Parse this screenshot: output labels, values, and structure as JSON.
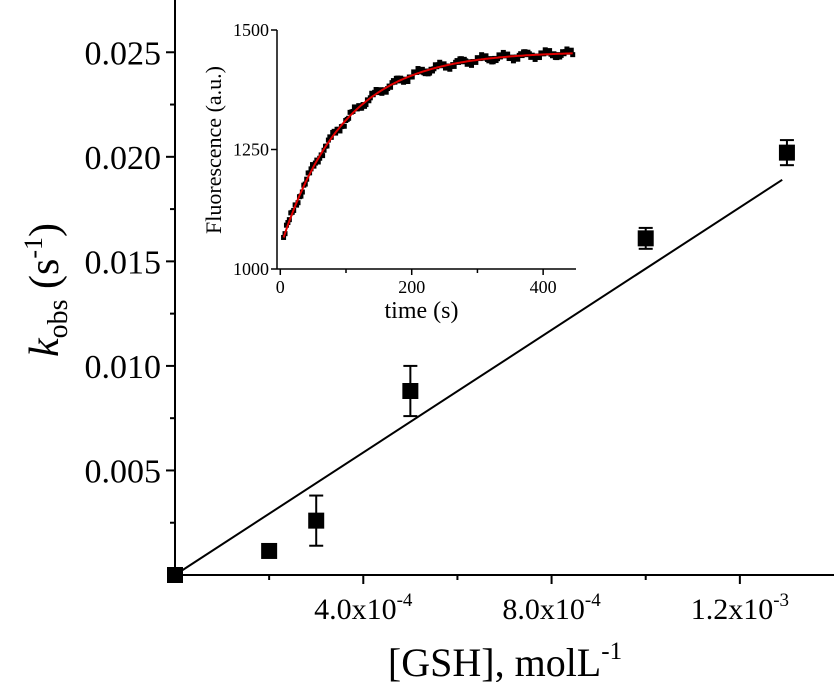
{
  "chart_data": [
    {
      "type": "scatter",
      "xlabel": {
        "base": "[GSH], molL",
        "sup": "-1"
      },
      "ylabel": {
        "main": "k",
        "sub": "obs",
        "unit_open": " (s",
        "sup": "-1",
        "unit_close": ")"
      },
      "xlim": [
        0,
        0.0014
      ],
      "ylim": [
        0,
        0.0275
      ],
      "xticks": [
        0.0004,
        0.0008,
        0.0012
      ],
      "xtick_labels": [
        {
          "base": "4.0x10",
          "sup": "-4"
        },
        {
          "base": "8.0x10",
          "sup": "-4"
        },
        {
          "base": "1.2x10",
          "sup": "-3"
        }
      ],
      "yticks": [
        0.005,
        0.01,
        0.015,
        0.02,
        0.025
      ],
      "ytick_labels": [
        "0.005",
        "0.010",
        "0.015",
        "0.020",
        "0.025"
      ],
      "series": [
        {
          "marker": "square",
          "color": "#000000",
          "x": [
            0,
            0.0002,
            0.0003,
            0.0005,
            0.001,
            0.0013
          ],
          "y": [
            0.0,
            0.00115,
            0.0026,
            0.0088,
            0.0161,
            0.0202
          ],
          "yerr": [
            0,
            0,
            0.0012,
            0.0012,
            0.0005,
            0.0006
          ]
        }
      ],
      "fit_line": {
        "color": "#000000",
        "x": [
          0,
          0.00129
        ],
        "y": [
          0,
          0.0189
        ]
      },
      "grid": false
    },
    {
      "type": "scatter",
      "role": "inset",
      "xlabel": "time (s)",
      "ylabel": "Fluorescence (a.u.)",
      "xlim": [
        -5,
        450
      ],
      "ylim": [
        1000,
        1500
      ],
      "xticks": [
        0,
        200,
        400
      ],
      "xtick_labels": [
        "0",
        "200",
        "400"
      ],
      "yticks": [
        1000,
        1250,
        1500
      ],
      "ytick_labels": [
        "1000",
        "1250",
        "1500"
      ],
      "series": [
        {
          "marker": "square",
          "color": "#000000",
          "model": "exponential_rise",
          "y0": 1045,
          "ymax": 1455,
          "rate": 0.0105,
          "x_start": 5,
          "x_end": 445,
          "x_step": 2.2,
          "noise": 10
        }
      ],
      "fit_line": {
        "color": "#e00000",
        "model": "exponential_rise",
        "y0": 1045,
        "ymax": 1455,
        "rate": 0.0105
      },
      "grid": false
    }
  ]
}
